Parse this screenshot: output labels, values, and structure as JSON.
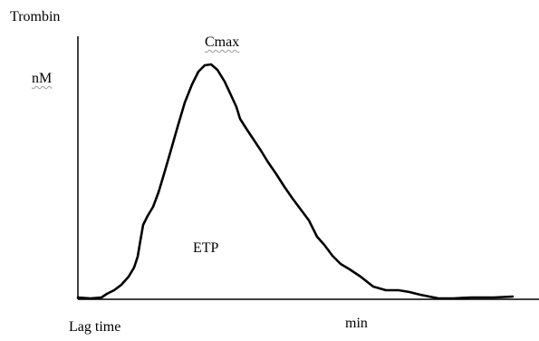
{
  "figure": {
    "y_axis_title": "Trombin",
    "y_unit": "nM",
    "peak_label": "Cmax",
    "area_label": "ETP",
    "x_start_label": "Lag time",
    "x_unit": "min",
    "colors": {
      "curve": "#000000",
      "axis": "#000000",
      "spell_underline": "#9a9a9a"
    }
  }
}
